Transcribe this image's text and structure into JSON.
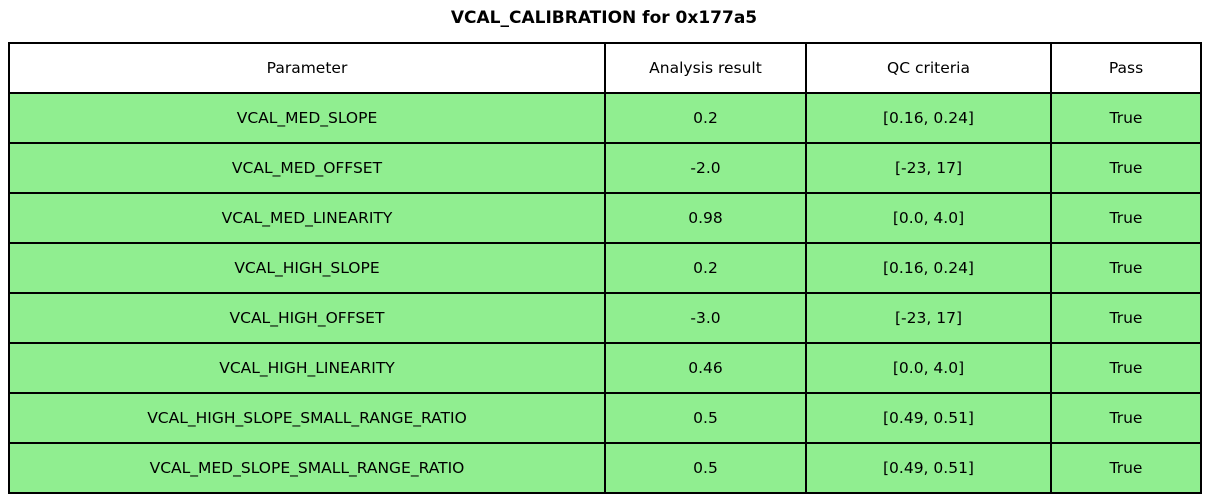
{
  "title": "VCAL_CALIBRATION for 0x177a5",
  "colors": {
    "pass_row_bg": "#90ee90",
    "header_bg": "#ffffff",
    "border": "#000000",
    "text": "#000000"
  },
  "chart_data": {
    "type": "table",
    "title": "VCAL_CALIBRATION for 0x177a5",
    "columns": [
      "Parameter",
      "Analysis result",
      "QC criteria",
      "Pass"
    ],
    "rows": [
      [
        "VCAL_MED_SLOPE",
        "0.2",
        "[0.16, 0.24]",
        "True"
      ],
      [
        "VCAL_MED_OFFSET",
        "-2.0",
        "[-23, 17]",
        "True"
      ],
      [
        "VCAL_MED_LINEARITY",
        "0.98",
        "[0.0, 4.0]",
        "True"
      ],
      [
        "VCAL_HIGH_SLOPE",
        "0.2",
        "[0.16, 0.24]",
        "True"
      ],
      [
        "VCAL_HIGH_OFFSET",
        "-3.0",
        "[-23, 17]",
        "True"
      ],
      [
        "VCAL_HIGH_LINEARITY",
        "0.46",
        "[0.0, 4.0]",
        "True"
      ],
      [
        "VCAL_HIGH_SLOPE_SMALL_RANGE_RATIO",
        "0.5",
        "[0.49, 0.51]",
        "True"
      ],
      [
        "VCAL_MED_SLOPE_SMALL_RANGE_RATIO",
        "0.5",
        "[0.49, 0.51]",
        "True"
      ]
    ]
  }
}
